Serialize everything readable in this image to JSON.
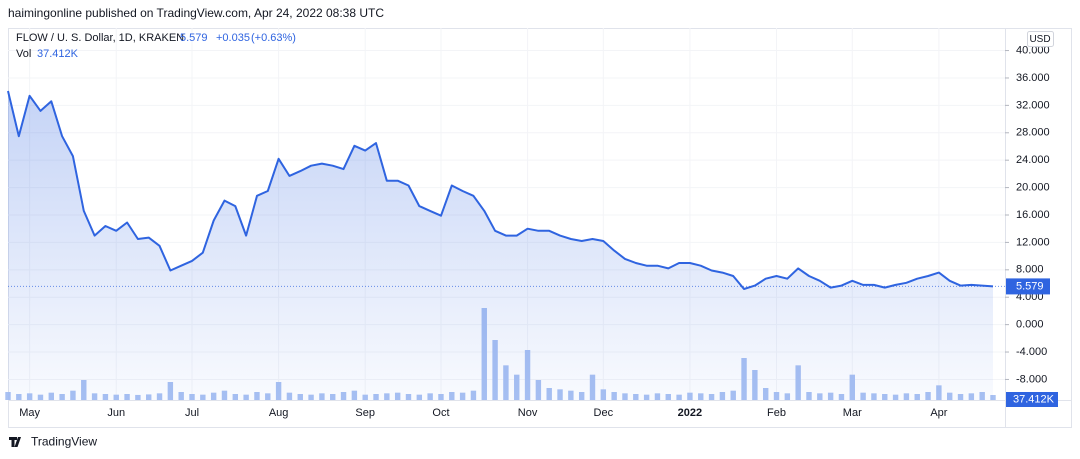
{
  "publisher": "haimingonline published on TradingView.com, Apr 24, 2022 08:38 UTC",
  "brand": "TradingView",
  "chart_data": {
    "type": "line",
    "title": "FLOW / U. S. Dollar, 1D, KRAKEN",
    "change": "+0.035",
    "change_pct": "(+0.63%)",
    "currency": "USD",
    "categories": [
      null,
      null,
      "May",
      null,
      null,
      null,
      null,
      null,
      null,
      null,
      "Jun",
      null,
      null,
      null,
      null,
      null,
      null,
      "Jul",
      null,
      null,
      null,
      null,
      null,
      null,
      null,
      "Aug",
      null,
      null,
      null,
      null,
      null,
      null,
      null,
      "Sep",
      null,
      null,
      null,
      null,
      null,
      null,
      "Oct",
      null,
      null,
      null,
      null,
      null,
      null,
      null,
      "Nov",
      null,
      null,
      null,
      null,
      null,
      null,
      "Dec",
      null,
      null,
      null,
      null,
      null,
      null,
      null,
      "2022",
      null,
      null,
      null,
      null,
      null,
      null,
      null,
      "Feb",
      null,
      null,
      null,
      null,
      null,
      null,
      "Mar",
      null,
      null,
      null,
      null,
      null,
      null,
      null,
      "Apr",
      null,
      null,
      null,
      null,
      null
    ],
    "series": [
      {
        "name": "FLOW / U. S. Dollar",
        "color": "#2f64e0",
        "values": [
          34.1,
          27.5,
          33.4,
          31.2,
          32.6,
          27.5,
          24.6,
          16.6,
          13,
          14.4,
          13.7,
          14.9,
          12.5,
          12.7,
          11.5,
          7.9,
          8.6,
          9.3,
          10.5,
          15.2,
          18.1,
          17.3,
          13,
          18.8,
          19.5,
          24.2,
          21.7,
          22.4,
          23.2,
          23.5,
          23.2,
          22.7,
          26.1,
          25.4,
          26.5,
          21,
          21,
          20.3,
          17.3,
          16.6,
          15.9,
          20.3,
          19.5,
          18.8,
          16.6,
          13.7,
          13,
          13,
          14,
          13.7,
          13.7,
          13,
          12.5,
          12.2,
          12.5,
          12.2,
          10.8,
          9.6,
          9,
          8.6,
          8.6,
          8.2,
          9,
          9,
          8.6,
          7.9,
          7.6,
          7.1,
          5.2,
          5.7,
          6.7,
          7.1,
          6.7,
          8.2,
          7.1,
          6.4,
          5.4,
          5.7,
          6.4,
          5.8,
          5.8,
          5.4,
          5.8,
          6.1,
          6.7,
          7.1,
          7.6,
          6.4,
          5.7,
          5.8,
          5.7,
          5.579
        ]
      }
    ],
    "volume": {
      "name": "Vol",
      "color": "#a9c1f2",
      "last_label": "37.412K",
      "values": [
        60,
        45,
        50,
        40,
        55,
        45,
        70,
        150,
        50,
        45,
        40,
        45,
        38,
        42,
        50,
        135,
        60,
        45,
        40,
        55,
        70,
        45,
        40,
        60,
        50,
        135,
        55,
        45,
        40,
        50,
        45,
        60,
        70,
        40,
        45,
        50,
        55,
        45,
        40,
        50,
        45,
        60,
        55,
        70,
        690,
        450,
        260,
        190,
        375,
        150,
        90,
        80,
        70,
        60,
        190,
        80,
        60,
        50,
        45,
        40,
        50,
        45,
        40,
        55,
        50,
        45,
        60,
        70,
        315,
        225,
        90,
        60,
        50,
        260,
        60,
        50,
        55,
        45,
        190,
        55,
        50,
        45,
        40,
        50,
        45,
        60,
        110,
        55,
        45,
        50,
        60,
        37.412
      ]
    },
    "ylim": [
      -11,
      43
    ],
    "yticks": [
      {
        "value": 40,
        "label": "40.000"
      },
      {
        "value": 36,
        "label": "36.000"
      },
      {
        "value": 32,
        "label": "32.000"
      },
      {
        "value": 28,
        "label": "28.000"
      },
      {
        "value": 24,
        "label": "24.000"
      },
      {
        "value": 20,
        "label": "20.000"
      },
      {
        "value": 16,
        "label": "16.000"
      },
      {
        "value": 12,
        "label": "12.000"
      },
      {
        "value": 8,
        "label": "8.000"
      },
      {
        "value": 4,
        "label": "4.000"
      },
      {
        "value": 0,
        "label": "0.000"
      },
      {
        "value": -4,
        "label": "-4.000"
      },
      {
        "value": -8,
        "label": "-8.000"
      }
    ],
    "grid": true
  }
}
